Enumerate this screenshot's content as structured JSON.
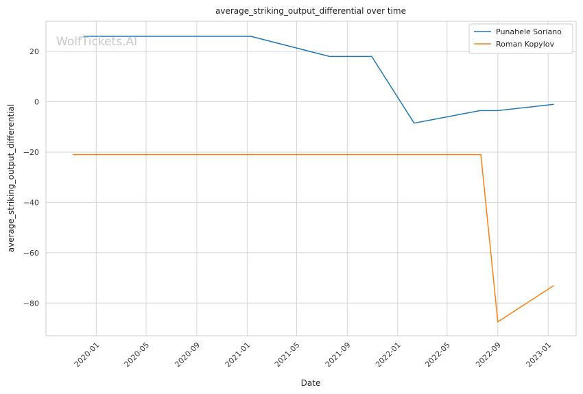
{
  "watermark": "WolfTickets.AI",
  "chart_data": {
    "type": "line",
    "title": "average_striking_output_differential over time",
    "xlabel": "Date",
    "ylabel": "average_striking_output_differential",
    "x_ticks": [
      "2020-01",
      "2020-05",
      "2020-09",
      "2021-01",
      "2021-05",
      "2021-09",
      "2022-01",
      "2022-05",
      "2022-09",
      "2023-01"
    ],
    "y_ticks": [
      20,
      0,
      -20,
      -40,
      -60,
      -80
    ],
    "ylim": [
      -93,
      32
    ],
    "xlim": [
      "2019-09-01",
      "2023-03-10"
    ],
    "grid": true,
    "legend_position": "top-right",
    "series": [
      {
        "name": "Punahele Soriano",
        "color": "#1f77b4",
        "points": [
          {
            "x": "2019-12-01",
            "y": 26
          },
          {
            "x": "2021-01-10",
            "y": 26
          },
          {
            "x": "2021-07-20",
            "y": 18
          },
          {
            "x": "2021-10-30",
            "y": 18
          },
          {
            "x": "2022-02-10",
            "y": -8.5
          },
          {
            "x": "2022-07-20",
            "y": -3.5
          },
          {
            "x": "2022-09-01",
            "y": -3.5
          },
          {
            "x": "2023-01-15",
            "y": -1
          }
        ]
      },
      {
        "name": "Roman Kopylov",
        "color": "#ff7f0e",
        "points": [
          {
            "x": "2019-11-05",
            "y": -21
          },
          {
            "x": "2022-07-22",
            "y": -21
          },
          {
            "x": "2022-09-01",
            "y": -87.5
          },
          {
            "x": "2023-01-15",
            "y": -73
          }
        ]
      }
    ]
  }
}
